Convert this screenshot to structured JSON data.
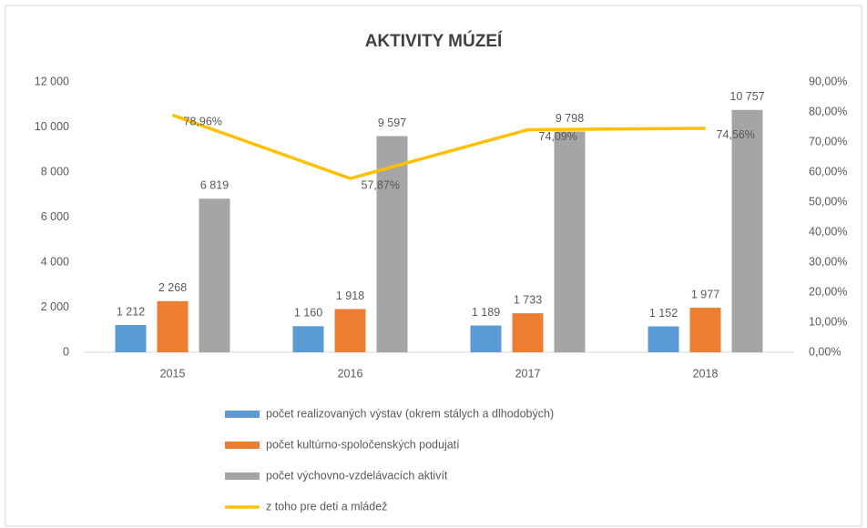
{
  "chart_data": {
    "type": "bar",
    "title": "AKTIVITY MÚZEÍ",
    "categories": [
      "2015",
      "2016",
      "2017",
      "2018"
    ],
    "series": [
      {
        "name": "počet realizovaných výstav (okrem stálych a dlhodobých)",
        "color": "#5b9bd5",
        "type": "bar",
        "values": [
          1212,
          1160,
          1189,
          1152
        ],
        "value_labels": [
          "1 212",
          "1 160",
          "1 189",
          "1 152"
        ]
      },
      {
        "name": "počet kultúrno-spoločenských podujatí",
        "color": "#ed7d31",
        "type": "bar",
        "values": [
          2268,
          1918,
          1733,
          1977
        ],
        "value_labels": [
          "2 268",
          "1 918",
          "1 733",
          "1 977"
        ]
      },
      {
        "name": "počet výchovno-vzdelávacích aktivít",
        "color": "#a5a5a5",
        "type": "bar",
        "values": [
          6819,
          9597,
          9798,
          10757
        ],
        "value_labels": [
          "6 819",
          "9 597",
          "9 798",
          "10 757"
        ]
      },
      {
        "name": "z toho pre deti a mládež",
        "color": "#ffc000",
        "type": "line",
        "axis": "y2",
        "values": [
          78.96,
          57.87,
          74.09,
          74.56
        ],
        "value_labels": [
          "78,96%",
          "57,87%",
          "74,09%",
          "74,56%"
        ]
      }
    ],
    "ylim": [
      0,
      12000
    ],
    "yticks": [
      0,
      {
        "value": 2000,
        "label": "2 000"
      },
      {
        "value": 4000,
        "label": "4 000"
      },
      {
        "value": 6000,
        "label": "6 000"
      },
      {
        "value": 8000,
        "label": "8 000"
      },
      {
        "value": 10000,
        "label": "10 000"
      },
      {
        "value": 12000,
        "label": "12 000"
      }
    ],
    "y2lim": [
      0,
      90
    ],
    "y2ticks": [
      {
        "value": 0,
        "label": "0,00%"
      },
      {
        "value": 10,
        "label": "10,00%"
      },
      {
        "value": 20,
        "label": "20,00%"
      },
      {
        "value": 30,
        "label": "30,00%"
      },
      {
        "value": 40,
        "label": "40,00%"
      },
      {
        "value": 50,
        "label": "50,00%"
      },
      {
        "value": 60,
        "label": "60,00%"
      },
      {
        "value": 70,
        "label": "70,00%"
      },
      {
        "value": 80,
        "label": "80,00%"
      },
      {
        "value": 90,
        "label": "90,00%"
      }
    ],
    "grid": false
  }
}
